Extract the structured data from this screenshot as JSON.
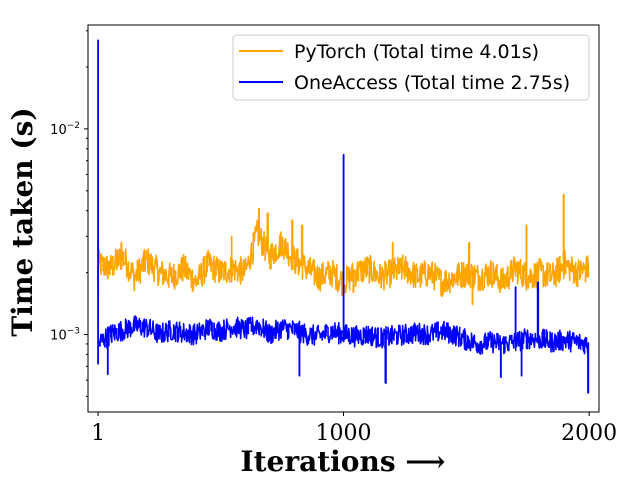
{
  "chart_data": {
    "type": "line",
    "title": "",
    "xlabel": "Iterations ⟶",
    "ylabel": "Time taken (s)",
    "yscale": "log",
    "xlim": [
      -40,
      2040
    ],
    "ylim": [
      0.00042,
      0.032
    ],
    "x_ticks": [
      {
        "value": 1,
        "label": "1"
      },
      {
        "value": 1000,
        "label": "1000"
      },
      {
        "value": 2000,
        "label": "2000"
      }
    ],
    "y_ticks": [
      {
        "value": 0.001,
        "base": "10",
        "exp": "−3"
      },
      {
        "value": 0.01,
        "base": "10",
        "exp": "−2"
      }
    ],
    "legend": {
      "placement": "top-right"
    },
    "series": [
      {
        "name": "PyTorch (Total time 4.01s)",
        "color": "#FFA500",
        "x": [
          1,
          50,
          100,
          150,
          200,
          250,
          300,
          350,
          400,
          450,
          500,
          550,
          600,
          650,
          700,
          750,
          800,
          850,
          900,
          950,
          1000,
          1050,
          1100,
          1150,
          1200,
          1250,
          1300,
          1350,
          1400,
          1450,
          1500,
          1550,
          1600,
          1650,
          1700,
          1750,
          1800,
          1850,
          1900,
          1950,
          2000
        ],
        "y": [
          0.0022,
          0.0021,
          0.0024,
          0.0019,
          0.0023,
          0.002,
          0.0019,
          0.0021,
          0.0018,
          0.0022,
          0.002,
          0.0021,
          0.002,
          0.0031,
          0.0024,
          0.0028,
          0.0023,
          0.0021,
          0.0019,
          0.002,
          0.0018,
          0.002,
          0.0021,
          0.0019,
          0.002,
          0.0021,
          0.0019,
          0.002,
          0.0018,
          0.0019,
          0.002,
          0.0019,
          0.002,
          0.0018,
          0.0021,
          0.0019,
          0.002,
          0.0019,
          0.0022,
          0.002,
          0.0021
        ],
        "spikes": [
          {
            "x": 1,
            "y": 0.0016
          },
          {
            "x": 1,
            "y": 0.0029
          },
          {
            "x": 95,
            "y": 0.0028
          },
          {
            "x": 545,
            "y": 0.003
          },
          {
            "x": 655,
            "y": 0.0041
          },
          {
            "x": 690,
            "y": 0.0039
          },
          {
            "x": 790,
            "y": 0.0036
          },
          {
            "x": 830,
            "y": 0.0034
          },
          {
            "x": 1040,
            "y": 0.0016
          },
          {
            "x": 1200,
            "y": 0.0028
          },
          {
            "x": 1510,
            "y": 0.0028
          },
          {
            "x": 1525,
            "y": 0.0014
          },
          {
            "x": 1745,
            "y": 0.0034
          },
          {
            "x": 1895,
            "y": 0.0048
          }
        ]
      },
      {
        "name": "OneAccess (Total time 2.75s)",
        "color": "#0000FF",
        "x": [
          1,
          50,
          100,
          150,
          200,
          250,
          300,
          350,
          400,
          450,
          500,
          550,
          600,
          650,
          700,
          750,
          800,
          850,
          900,
          950,
          1000,
          1050,
          1100,
          1150,
          1200,
          1250,
          1300,
          1350,
          1400,
          1450,
          1500,
          1550,
          1600,
          1650,
          1700,
          1750,
          1800,
          1850,
          1900,
          1950,
          2000
        ],
        "y": [
          0.0009,
          0.001,
          0.00105,
          0.0011,
          0.00108,
          0.001,
          0.00105,
          0.00102,
          0.001,
          0.00108,
          0.00104,
          0.0011,
          0.00105,
          0.00112,
          0.001,
          0.00108,
          0.00105,
          0.001,
          0.00098,
          0.00104,
          0.001,
          0.00098,
          0.001,
          0.00096,
          0.00098,
          0.001,
          0.00102,
          0.001,
          0.00104,
          0.001,
          0.00094,
          0.0009,
          0.00092,
          0.0009,
          0.00092,
          0.00096,
          0.00095,
          0.00092,
          0.00094,
          0.00092,
          0.0009
        ],
        "spikes": [
          {
            "x": 1,
            "y": 0.027
          },
          {
            "x": 1,
            "y": 0.00072
          },
          {
            "x": 40,
            "y": 0.00064
          },
          {
            "x": 820,
            "y": 0.00063
          },
          {
            "x": 1000,
            "y": 0.0075
          },
          {
            "x": 1170,
            "y": 0.00058
          },
          {
            "x": 1640,
            "y": 0.00062
          },
          {
            "x": 1700,
            "y": 0.0017
          },
          {
            "x": 1790,
            "y": 0.0018
          },
          {
            "x": 1725,
            "y": 0.00063
          },
          {
            "x": 1995,
            "y": 0.00052
          }
        ]
      }
    ]
  }
}
